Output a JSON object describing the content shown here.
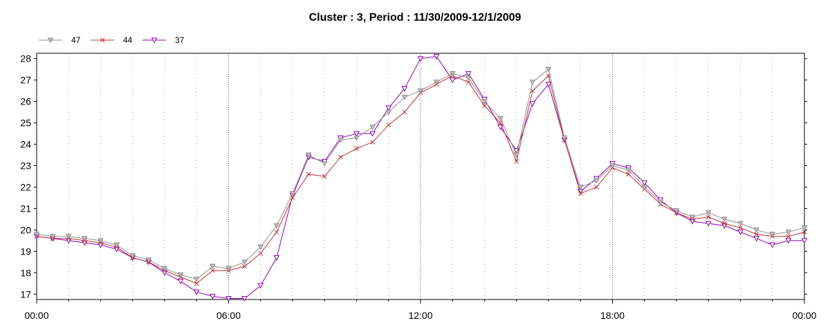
{
  "chart_data": {
    "type": "line",
    "title": "Cluster : 3, Period : 11/30/2009-12/1/2009",
    "xlabel": "",
    "ylabel": "",
    "x_tick_labels": [
      "00:00",
      "06:00",
      "12:00",
      "18:00",
      "00:00"
    ],
    "x_ticks_hours": [
      0,
      6,
      12,
      18,
      24
    ],
    "xlim_hours": [
      0,
      24
    ],
    "y_ticks": [
      17,
      18,
      19,
      20,
      21,
      22,
      23,
      24,
      25,
      26,
      27,
      28
    ],
    "ylim": [
      16.75,
      28.25
    ],
    "grid": "dotted vertical at every hour; major lines at 6h",
    "legend_position": "top-left",
    "x_hours": [
      0,
      0.5,
      1,
      1.5,
      2,
      2.5,
      3,
      3.5,
      4,
      4.5,
      5,
      5.5,
      6,
      6.5,
      7,
      7.5,
      8,
      8.5,
      9,
      9.5,
      10,
      10.5,
      11,
      11.5,
      12,
      12.5,
      13,
      13.5,
      14,
      14.5,
      15,
      15.5,
      16,
      16.5,
      17,
      17.5,
      18,
      18.5,
      19,
      19.5,
      20,
      20.5,
      21,
      21.5,
      22,
      22.5,
      23,
      23.5,
      24
    ],
    "series": [
      {
        "name": "47",
        "color": "#909090",
        "marker": "triangle-down",
        "values": [
          19.8,
          19.7,
          19.7,
          19.6,
          19.5,
          19.3,
          18.8,
          18.6,
          18.2,
          17.9,
          17.7,
          18.3,
          18.2,
          18.5,
          19.2,
          20.2,
          21.7,
          23.5,
          23.1,
          24.2,
          24.3,
          24.8,
          25.5,
          26.2,
          26.5,
          26.9,
          27.3,
          27.1,
          26.0,
          25.2,
          23.5,
          26.9,
          27.5,
          24.3,
          22.0,
          22.3,
          23.0,
          22.8,
          22.0,
          21.3,
          20.9,
          20.6,
          20.8,
          20.5,
          20.3,
          20.0,
          19.8,
          19.9,
          20.1
        ]
      },
      {
        "name": "44",
        "color": "#c03030",
        "marker": "x",
        "values": [
          19.7,
          19.6,
          19.6,
          19.5,
          19.4,
          19.2,
          18.7,
          18.5,
          18.1,
          17.8,
          17.5,
          18.1,
          18.1,
          18.3,
          18.9,
          19.9,
          21.5,
          22.6,
          22.5,
          23.4,
          23.8,
          24.1,
          24.9,
          25.5,
          26.4,
          26.8,
          27.2,
          26.9,
          25.8,
          25.0,
          23.2,
          26.5,
          27.2,
          24.2,
          21.7,
          22.0,
          22.9,
          22.6,
          21.9,
          21.2,
          20.8,
          20.5,
          20.6,
          20.3,
          20.1,
          19.8,
          19.7,
          19.7,
          19.9
        ]
      },
      {
        "name": "37",
        "color": "#8800aa",
        "marker": "triangle-down",
        "values": [
          19.7,
          19.6,
          19.5,
          19.4,
          19.3,
          19.1,
          18.7,
          18.5,
          18.0,
          17.6,
          17.1,
          16.9,
          16.8,
          16.8,
          17.4,
          18.7,
          21.6,
          23.4,
          23.2,
          24.3,
          24.5,
          24.5,
          25.7,
          26.6,
          28.0,
          28.1,
          27.0,
          27.3,
          26.1,
          24.8,
          23.7,
          25.9,
          26.8,
          24.2,
          21.8,
          22.4,
          23.1,
          22.9,
          22.2,
          21.4,
          20.8,
          20.4,
          20.3,
          20.2,
          19.9,
          19.6,
          19.3,
          19.5,
          19.5
        ]
      }
    ]
  }
}
